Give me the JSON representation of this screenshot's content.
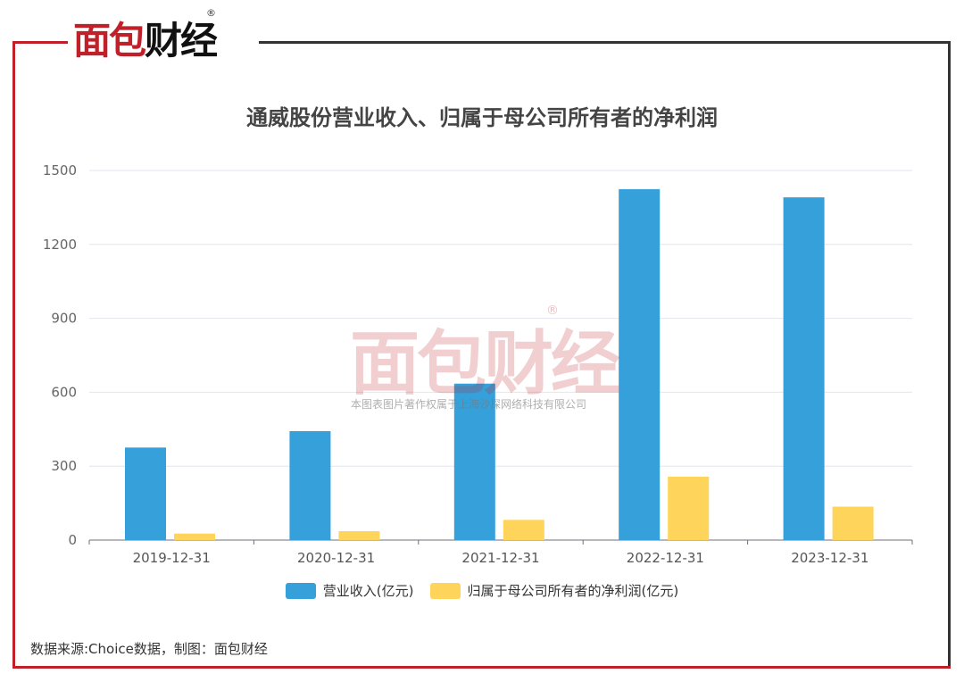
{
  "brand": {
    "logo_text": "面包财经",
    "registered": "®"
  },
  "watermark": {
    "text": "面包财经",
    "subtext": "本图表图片著作权属于上海沙探网络科技有限公司"
  },
  "chart_data": {
    "type": "bar",
    "title": "通威股份营业收入、归属于母公司所有者的净利润",
    "categories": [
      "2019-12-31",
      "2020-12-31",
      "2021-12-31",
      "2022-12-31",
      "2023-12-31"
    ],
    "series": [
      {
        "name": "营业收入(亿元)",
        "color": "#35a0da",
        "values": [
          375.55,
          442.0,
          634.91,
          1424.23,
          1391.04
        ]
      },
      {
        "name": "归属于母公司所有者的净利润(亿元)",
        "color": "#ffd45a",
        "values": [
          26.35,
          36.08,
          82.08,
          257.26,
          135.74
        ]
      }
    ],
    "yticks": [
      "0",
      "300",
      "600",
      "900",
      "1200",
      "1500"
    ],
    "ylim": [
      0,
      1500
    ],
    "grid": true,
    "legend": "bottom"
  },
  "footer": {
    "source": "数据来源:Choice数据，制图：面包财经"
  }
}
